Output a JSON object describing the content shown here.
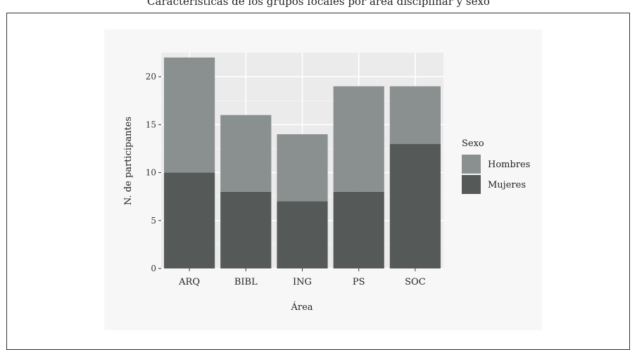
{
  "caption": "Características de los grupos focales por área disciplinar y sexo",
  "chart_data": {
    "type": "bar",
    "stacked": true,
    "title": "",
    "xlabel": "Área",
    "ylabel": "N. de participantes",
    "categories": [
      "ARQ",
      "BIBL",
      "ING",
      "PS",
      "SOC"
    ],
    "series": [
      {
        "name": "Mujeres",
        "values": [
          10,
          8,
          7,
          8,
          13
        ],
        "color": "#555a59"
      },
      {
        "name": "Hombres",
        "values": [
          12,
          8,
          7,
          11,
          6
        ],
        "color": "#8a9090"
      }
    ],
    "ylim": [
      0,
      22.5
    ],
    "yticks": [
      0,
      5,
      10,
      15,
      20
    ],
    "legend": {
      "title": "Sexo",
      "position": "right",
      "entries": [
        "Hombres",
        "Mujeres"
      ]
    },
    "panel_background": "#ebebeb",
    "grid": true
  }
}
